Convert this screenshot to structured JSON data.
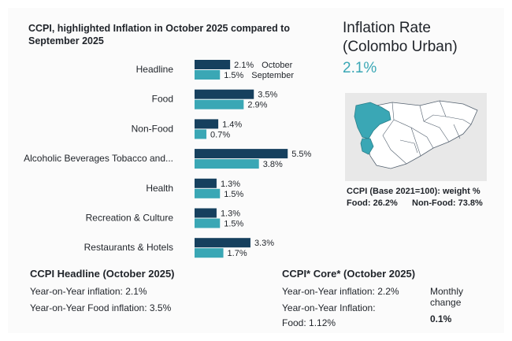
{
  "chart_data": {
    "type": "bar",
    "orientation": "horizontal",
    "title": "CCPI, highlighted Inflation in October 2025 compared to September 2025",
    "categories": [
      "Headline",
      "Food",
      "Non-Food",
      "Alcoholic Beverages Tobacco and...",
      "Health",
      "Recreation & Culture",
      "Restaurants & Hotels"
    ],
    "series": [
      {
        "name": "October",
        "color": "#16405e",
        "values": [
          2.1,
          3.5,
          1.4,
          5.5,
          1.3,
          1.3,
          3.3
        ]
      },
      {
        "name": "September",
        "color": "#3aa7b5",
        "values": [
          1.5,
          2.9,
          0.7,
          3.8,
          1.5,
          1.5,
          1.7
        ]
      }
    ],
    "value_suffix": "%",
    "xlim": [
      0,
      6
    ],
    "legend_position": "inline-first-category"
  },
  "inflation_panel": {
    "title_line1": "Inflation Rate",
    "title_line2": "(Colombo Urban)",
    "value": "2.1%",
    "weight_title": "CCPI (Base 2021=100): weight %",
    "food_weight": "Food: 26.2%",
    "nonfood_weight": "Non-Food: 73.8%"
  },
  "headline_section": {
    "title": "CCPI Headline (October 2025)",
    "yoy": "Year-on-Year inflation: 2.1%",
    "yoy_food": "Year-on-Year Food inflation: 3.5%"
  },
  "core_section": {
    "title": "CCPI* Core* (October 2025)",
    "yoy": "Year-on-Year inflation: 2.2%",
    "yoy_food_line1": "Year-on-Year Inflation:",
    "yoy_food_line2": "Food: 1.12%",
    "monthly_label": "Monthly change",
    "monthly_value": "0.1%"
  },
  "colors": {
    "accent": "#3aa7b5",
    "dark": "#16405e"
  }
}
